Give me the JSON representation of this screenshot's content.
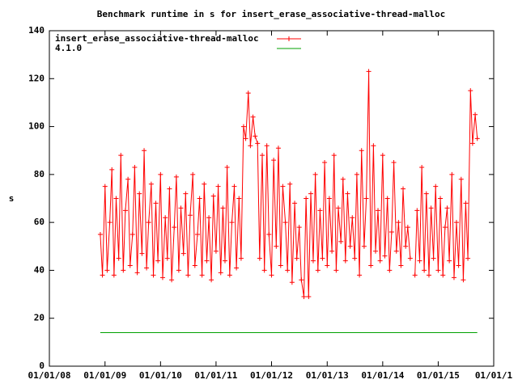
{
  "chart_data": {
    "type": "line",
    "title": "Benchmark runtime in s for insert_erase_associative-thread-malloc",
    "y_label": "s",
    "xlim": [
      "2008-01-01",
      "2016-01-01"
    ],
    "xticks": [
      {
        "value": "2008-01-01",
        "label": "01/01/08"
      },
      {
        "value": "2009-01-01",
        "label": "01/01/09"
      },
      {
        "value": "2010-01-01",
        "label": "01/01/10"
      },
      {
        "value": "2011-01-01",
        "label": "01/01/11"
      },
      {
        "value": "2012-01-01",
        "label": "01/01/12"
      },
      {
        "value": "2013-01-01",
        "label": "01/01/13"
      },
      {
        "value": "2014-01-01",
        "label": "01/01/14"
      },
      {
        "value": "2015-01-01",
        "label": "01/01/15"
      },
      {
        "value": "2016-01-01",
        "label": "01/01/1"
      }
    ],
    "ylim": [
      0,
      140
    ],
    "yticks": [
      0,
      20,
      40,
      60,
      80,
      100,
      120,
      140
    ],
    "legend": "top-left",
    "series": [
      {
        "name": "insert_erase_associative-thread-malloc",
        "color": "#ff0000",
        "markers": true,
        "x": [
          "2008-12-01",
          "2008-12-15",
          "2009-01-01",
          "2009-01-15",
          "2009-02-01",
          "2009-02-15",
          "2009-03-01",
          "2009-03-15",
          "2009-04-01",
          "2009-04-15",
          "2009-05-01",
          "2009-05-15",
          "2009-06-01",
          "2009-06-15",
          "2009-07-01",
          "2009-07-15",
          "2009-08-01",
          "2009-08-15",
          "2009-09-01",
          "2009-09-15",
          "2009-10-01",
          "2009-10-15",
          "2009-11-01",
          "2009-11-15",
          "2009-12-01",
          "2009-12-15",
          "2010-01-01",
          "2010-01-15",
          "2010-02-01",
          "2010-02-15",
          "2010-03-01",
          "2010-03-15",
          "2010-04-01",
          "2010-04-15",
          "2010-05-01",
          "2010-05-15",
          "2010-06-01",
          "2010-06-15",
          "2010-07-01",
          "2010-07-15",
          "2010-08-01",
          "2010-08-15",
          "2010-09-01",
          "2010-09-15",
          "2010-10-01",
          "2010-10-15",
          "2010-11-01",
          "2010-11-15",
          "2010-12-01",
          "2010-12-15",
          "2011-01-01",
          "2011-01-15",
          "2011-02-01",
          "2011-02-15",
          "2011-03-01",
          "2011-03-15",
          "2011-04-01",
          "2011-04-15",
          "2011-05-01",
          "2011-05-15",
          "2011-06-01",
          "2011-06-15",
          "2011-07-01",
          "2011-07-15",
          "2011-08-01",
          "2011-08-15",
          "2011-09-01",
          "2011-09-15",
          "2011-10-01",
          "2011-10-15",
          "2011-11-01",
          "2011-11-15",
          "2011-12-01",
          "2011-12-15",
          "2012-01-01",
          "2012-01-15",
          "2012-02-01",
          "2012-02-15",
          "2012-03-01",
          "2012-03-15",
          "2012-04-01",
          "2012-04-15",
          "2012-05-01",
          "2012-05-15",
          "2012-06-01",
          "2012-06-15",
          "2012-07-01",
          "2012-07-15",
          "2012-08-01",
          "2012-08-15",
          "2012-09-01",
          "2012-09-15",
          "2012-10-01",
          "2012-10-15",
          "2012-11-01",
          "2012-11-15",
          "2012-12-01",
          "2012-12-15",
          "2013-01-01",
          "2013-01-15",
          "2013-02-01",
          "2013-02-15",
          "2013-03-01",
          "2013-03-15",
          "2013-04-01",
          "2013-04-15",
          "2013-05-01",
          "2013-05-15",
          "2013-06-01",
          "2013-06-15",
          "2013-07-01",
          "2013-07-15",
          "2013-08-01",
          "2013-08-15",
          "2013-09-01",
          "2013-09-15",
          "2013-10-01",
          "2013-10-15",
          "2013-11-01",
          "2013-11-15",
          "2013-12-01",
          "2013-12-15",
          "2014-01-01",
          "2014-01-15",
          "2014-02-01",
          "2014-02-15",
          "2014-03-01",
          "2014-03-15",
          "2014-04-01",
          "2014-04-15",
          "2014-05-01",
          "2014-05-15",
          "2014-06-01",
          "2014-06-15",
          "2014-07-01",
          "2014-07-15",
          "2014-08-01",
          "2014-08-15",
          "2014-09-01",
          "2014-09-15",
          "2014-10-01",
          "2014-10-15",
          "2014-11-01",
          "2014-11-15",
          "2014-12-01",
          "2014-12-15",
          "2015-01-01",
          "2015-01-15",
          "2015-02-01",
          "2015-02-15",
          "2015-03-01",
          "2015-03-15",
          "2015-04-01",
          "2015-04-15",
          "2015-05-01",
          "2015-05-15",
          "2015-06-01",
          "2015-06-15",
          "2015-07-01",
          "2015-07-15",
          "2015-08-01",
          "2015-08-15",
          "2015-09-01",
          "2015-09-15"
        ],
        "values": [
          55,
          38,
          75,
          40,
          60,
          82,
          38,
          70,
          45,
          88,
          40,
          65,
          78,
          42,
          55,
          83,
          39,
          72,
          47,
          90,
          41,
          60,
          76,
          38,
          68,
          44,
          80,
          37,
          62,
          45,
          74,
          36,
          58,
          79,
          40,
          66,
          47,
          72,
          38,
          63,
          80,
          42,
          55,
          70,
          38,
          76,
          44,
          62,
          36,
          71,
          48,
          75,
          39,
          66,
          44,
          83,
          38,
          60,
          75,
          41,
          70,
          45,
          100,
          95,
          114,
          92,
          104,
          96,
          93,
          45,
          88,
          40,
          92,
          55,
          38,
          86,
          50,
          91,
          42,
          75,
          60,
          40,
          76,
          35,
          68,
          45,
          58,
          36,
          29,
          70,
          29,
          72,
          44,
          80,
          40,
          65,
          45,
          85,
          42,
          70,
          48,
          88,
          40,
          66,
          52,
          78,
          44,
          72,
          50,
          62,
          45,
          80,
          38,
          90,
          50,
          70,
          123,
          42,
          92,
          48,
          65,
          44,
          88,
          46,
          70,
          40,
          56,
          85,
          48,
          60,
          42,
          74,
          50,
          58,
          45,
          null,
          38,
          65,
          44,
          83,
          40,
          72,
          38,
          66,
          45,
          75,
          40,
          70,
          38,
          58,
          66,
          44,
          80,
          37,
          60,
          42,
          78,
          36,
          68,
          45,
          115,
          93,
          105,
          95
        ]
      },
      {
        "name": "4.1.0",
        "color": "#00a000",
        "markers": false,
        "x": [
          "2008-12-01",
          "2015-09-15"
        ],
        "values": [
          14,
          14
        ]
      }
    ]
  }
}
